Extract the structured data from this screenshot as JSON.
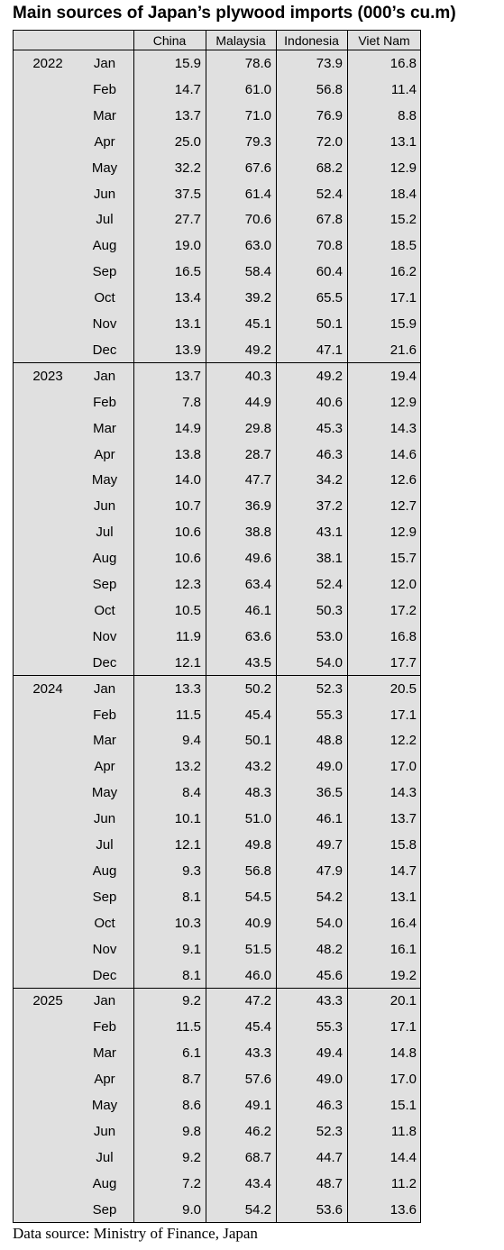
{
  "header": {
    "title": "Main sources of Japan’s plywood imports (000’s cu.m)"
  },
  "table": {
    "columns": [
      "China",
      "Malaysia",
      "Indonesia",
      "Viet Nam"
    ],
    "groups": [
      {
        "year": "2022",
        "rows": [
          {
            "month": "Jan",
            "values": [
              "15.9",
              "78.6",
              "73.9",
              "16.8"
            ]
          },
          {
            "month": "Feb",
            "values": [
              "14.7",
              "61.0",
              "56.8",
              "11.4"
            ]
          },
          {
            "month": "Mar",
            "values": [
              "13.7",
              "71.0",
              "76.9",
              "8.8"
            ]
          },
          {
            "month": "Apr",
            "values": [
              "25.0",
              "79.3",
              "72.0",
              "13.1"
            ]
          },
          {
            "month": "May",
            "values": [
              "32.2",
              "67.6",
              "68.2",
              "12.9"
            ]
          },
          {
            "month": "Jun",
            "values": [
              "37.5",
              "61.4",
              "52.4",
              "18.4"
            ]
          },
          {
            "month": "Jul",
            "values": [
              "27.7",
              "70.6",
              "67.8",
              "15.2"
            ]
          },
          {
            "month": "Aug",
            "values": [
              "19.0",
              "63.0",
              "70.8",
              "18.5"
            ]
          },
          {
            "month": "Sep",
            "values": [
              "16.5",
              "58.4",
              "60.4",
              "16.2"
            ]
          },
          {
            "month": "Oct",
            "values": [
              "13.4",
              "39.2",
              "65.5",
              "17.1"
            ]
          },
          {
            "month": "Nov",
            "values": [
              "13.1",
              "45.1",
              "50.1",
              "15.9"
            ]
          },
          {
            "month": "Dec",
            "values": [
              "13.9",
              "49.2",
              "47.1",
              "21.6"
            ]
          }
        ]
      },
      {
        "year": "2023",
        "rows": [
          {
            "month": "Jan",
            "values": [
              "13.7",
              "40.3",
              "49.2",
              "19.4"
            ]
          },
          {
            "month": "Feb",
            "values": [
              "7.8",
              "44.9",
              "40.6",
              "12.9"
            ]
          },
          {
            "month": "Mar",
            "values": [
              "14.9",
              "29.8",
              "45.3",
              "14.3"
            ]
          },
          {
            "month": "Apr",
            "values": [
              "13.8",
              "28.7",
              "46.3",
              "14.6"
            ]
          },
          {
            "month": "May",
            "values": [
              "14.0",
              "47.7",
              "34.2",
              "12.6"
            ]
          },
          {
            "month": "Jun",
            "values": [
              "10.7",
              "36.9",
              "37.2",
              "12.7"
            ]
          },
          {
            "month": "Jul",
            "values": [
              "10.6",
              "38.8",
              "43.1",
              "12.9"
            ]
          },
          {
            "month": "Aug",
            "values": [
              "10.6",
              "49.6",
              "38.1",
              "15.7"
            ]
          },
          {
            "month": "Sep",
            "values": [
              "12.3",
              "63.4",
              "52.4",
              "12.0"
            ]
          },
          {
            "month": "Oct",
            "values": [
              "10.5",
              "46.1",
              "50.3",
              "17.2"
            ]
          },
          {
            "month": "Nov",
            "values": [
              "11.9",
              "63.6",
              "53.0",
              "16.8"
            ]
          },
          {
            "month": "Dec",
            "values": [
              "12.1",
              "43.5",
              "54.0",
              "17.7"
            ]
          }
        ]
      },
      {
        "year": "2024",
        "rows": [
          {
            "month": "Jan",
            "values": [
              "13.3",
              "50.2",
              "52.3",
              "20.5"
            ]
          },
          {
            "month": "Feb",
            "values": [
              "11.5",
              "45.4",
              "55.3",
              "17.1"
            ]
          },
          {
            "month": "Mar",
            "values": [
              "9.4",
              "50.1",
              "48.8",
              "12.2"
            ]
          },
          {
            "month": "Apr",
            "values": [
              "13.2",
              "43.2",
              "49.0",
              "17.0"
            ]
          },
          {
            "month": "May",
            "values": [
              "8.4",
              "48.3",
              "36.5",
              "14.3"
            ]
          },
          {
            "month": "Jun",
            "values": [
              "10.1",
              "51.0",
              "46.1",
              "13.7"
            ]
          },
          {
            "month": "Jul",
            "values": [
              "12.1",
              "49.8",
              "49.7",
              "15.8"
            ]
          },
          {
            "month": "Aug",
            "values": [
              "9.3",
              "56.8",
              "47.9",
              "14.7"
            ]
          },
          {
            "month": "Sep",
            "values": [
              "8.1",
              "54.5",
              "54.2",
              "13.1"
            ]
          },
          {
            "month": "Oct",
            "values": [
              "10.3",
              "40.9",
              "54.0",
              "16.4"
            ]
          },
          {
            "month": "Nov",
            "values": [
              "9.1",
              "51.5",
              "48.2",
              "16.1"
            ]
          },
          {
            "month": "Dec",
            "values": [
              "8.1",
              "46.0",
              "45.6",
              "19.2"
            ]
          }
        ]
      },
      {
        "year": "2025",
        "rows": [
          {
            "month": "Jan",
            "values": [
              "9.2",
              "47.2",
              "43.3",
              "20.1"
            ]
          },
          {
            "month": "Feb",
            "values": [
              "11.5",
              "45.4",
              "55.3",
              "17.1"
            ]
          },
          {
            "month": "Mar",
            "values": [
              "6.1",
              "43.3",
              "49.4",
              "14.8"
            ]
          },
          {
            "month": "Apr",
            "values": [
              "8.7",
              "57.6",
              "49.0",
              "17.0"
            ]
          },
          {
            "month": "May",
            "values": [
              "8.6",
              "49.1",
              "46.3",
              "15.1"
            ]
          },
          {
            "month": "Jun",
            "values": [
              "9.8",
              "46.2",
              "52.3",
              "11.8"
            ]
          },
          {
            "month": "Jul",
            "values": [
              "9.2",
              "68.7",
              "44.7",
              "14.4"
            ]
          },
          {
            "month": "Aug",
            "values": [
              "7.2",
              "43.4",
              "48.7",
              "11.2"
            ]
          },
          {
            "month": "Sep",
            "values": [
              "9.0",
              "54.2",
              "53.6",
              "13.6"
            ]
          }
        ]
      }
    ]
  },
  "footer": {
    "source": "Data source: Ministry of Finance, Japan"
  }
}
